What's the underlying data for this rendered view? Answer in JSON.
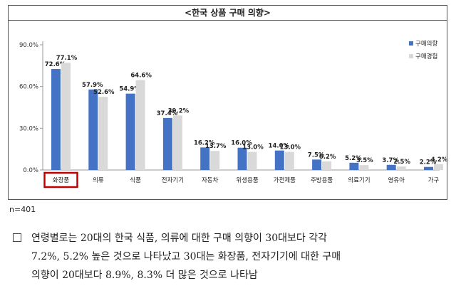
{
  "chart_data": {
    "type": "bar",
    "title": "<한국 상품 구매 의향>",
    "categories": [
      "화장품",
      "의류",
      "식품",
      "전자기기",
      "자동차",
      "위생용품",
      "가전제품",
      "주방용품",
      "의료기기",
      "영유아",
      "가구"
    ],
    "highlighted_category": "화장품",
    "series": [
      {
        "name": "구매의향",
        "color": "#4472C4",
        "values": [
          72.6,
          57.9,
          54.9,
          37.4,
          16.2,
          16.0,
          14.0,
          7.5,
          5.2,
          3.7,
          2.2
        ]
      },
      {
        "name": "구매경험",
        "color": "#D9D9D9",
        "values": [
          77.1,
          52.6,
          64.6,
          39.2,
          13.7,
          13.0,
          13.0,
          6.2,
          3.5,
          2.5,
          4.2
        ]
      }
    ],
    "value_labels": [
      [
        "72.6%",
        "57.9%",
        "54.9%",
        "37.4%",
        "16.2%",
        "16.0%",
        "14.0%",
        "7.5%",
        "5.2%",
        "3.7%",
        "2.2%"
      ],
      [
        "77.1%",
        "52.6%",
        "64.6%",
        "39.2%",
        "13.7%",
        "13.0%",
        "13.0%",
        "6.2%",
        "3.5%",
        "2.5%",
        "4.2%"
      ]
    ],
    "ylim": [
      0,
      90
    ],
    "yticks": [
      0,
      30,
      60,
      90
    ],
    "ytick_labels": [
      "0.0%",
      "30.0%",
      "60.0%",
      "90.0%"
    ],
    "legend_position": "top-right",
    "grid": false
  },
  "note": "n=401",
  "summary": {
    "lines": [
      "연령별로는 20대의 한국 식품, 의류에 대한 구매 의향이 30대보다 각각",
      "7.2%, 5.2% 높은 것으로 나타났고 30대는 화장품, 전자기기에 대한 구매",
      "의향이 20대보다 8.9%, 8.3% 더 많은 것으로 나타남"
    ]
  },
  "colors": {
    "highlight_border": "#C00000",
    "axis": "#999999"
  }
}
